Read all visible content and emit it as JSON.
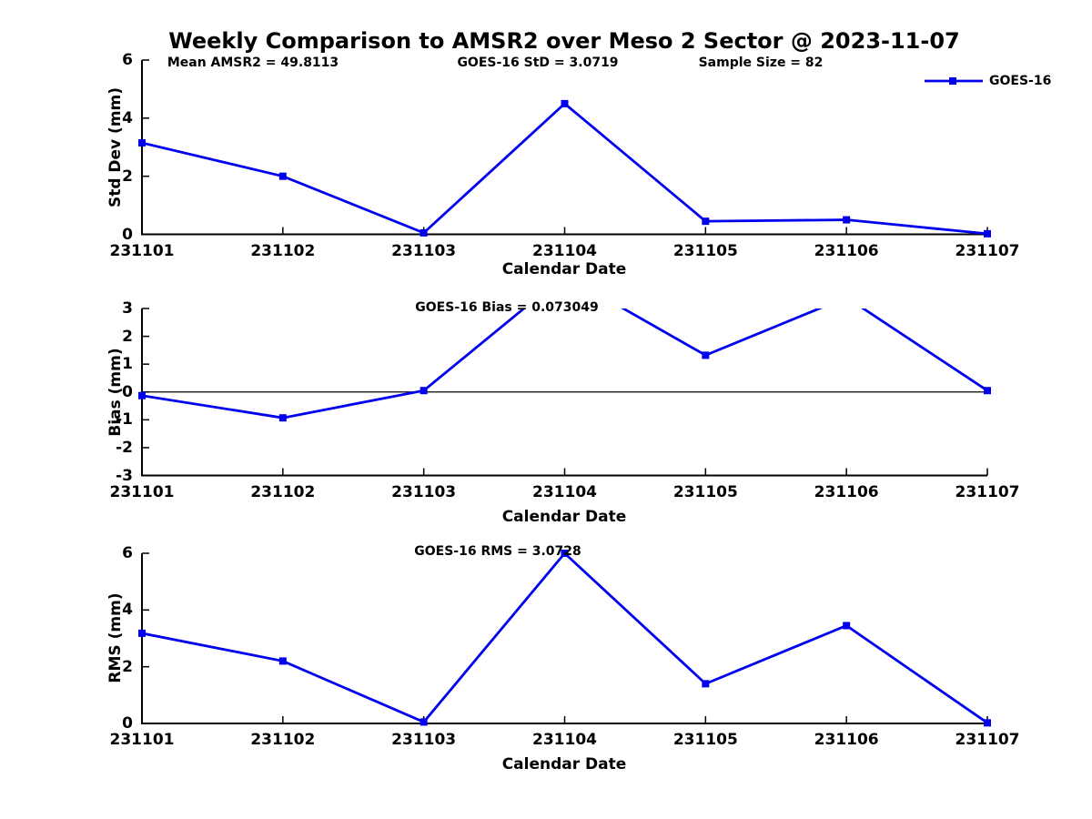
{
  "chart_data": {
    "type": "line",
    "title": "Weekly Comparison to AMSR2 over Meso 2 Sector @ 2023-11-07",
    "xlabel": "Calendar Date",
    "categories": [
      "231101",
      "231102",
      "231103",
      "231104",
      "231105",
      "231106",
      "231107"
    ],
    "legend": [
      "GOES-16"
    ],
    "legend_position": "top-right",
    "series_color": "#0000ee",
    "axis_color": "#000000",
    "background_color": "#ffffff",
    "marker": "filled-square",
    "grid": false,
    "subplots": [
      {
        "ylabel": "Std Dev (mm)",
        "ylim": [
          0,
          6
        ],
        "yticks": [
          0,
          2,
          4,
          6
        ],
        "annotations": [
          "Mean AMSR2 = 49.8113",
          "GOES-16 StD = 3.0719",
          "Sample Size = 82"
        ],
        "series": [
          {
            "name": "GOES-16",
            "values": [
              3.15,
              2.0,
              0.05,
              4.5,
              0.45,
              0.5,
              0.02
            ]
          }
        ]
      },
      {
        "ylabel": "Bias (mm)",
        "ylim": [
          -3,
          3
        ],
        "yticks": [
          -3,
          -2,
          -1,
          0,
          1,
          2,
          3
        ],
        "zero_line": true,
        "annotations": [
          "GOES-16 Bias = 0.073049"
        ],
        "series": [
          {
            "name": "GOES-16",
            "values": [
              -0.13,
              -0.93,
              0.05,
              4.2,
              1.32,
              3.4,
              0.05
            ]
          }
        ]
      },
      {
        "ylabel": "RMS (mm)",
        "ylim": [
          0,
          6
        ],
        "yticks": [
          0,
          2,
          4,
          6
        ],
        "annotations": [
          "GOES-16 RMS = 3.0728"
        ],
        "series": [
          {
            "name": "GOES-16",
            "values": [
              3.18,
              2.2,
              0.05,
              6.0,
              1.4,
              3.45,
              0.02
            ]
          }
        ]
      }
    ]
  }
}
